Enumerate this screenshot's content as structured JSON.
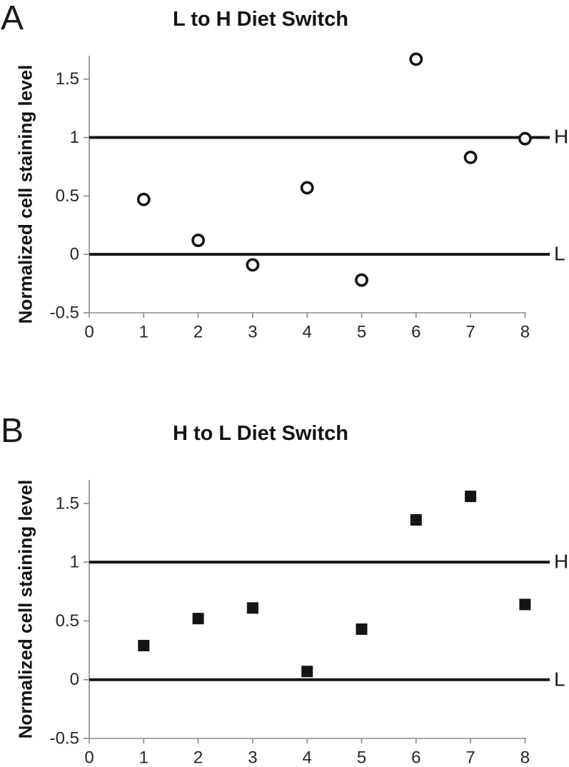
{
  "colors": {
    "background": "#ffffff",
    "marker": "#141414",
    "marker_fill_open": "#ffffff",
    "ref_line": "#141414",
    "axis": "#8a8a8a",
    "tick_label": "#262626",
    "text": "#141414"
  },
  "chart_data": [
    {
      "type": "scatter",
      "panel_label": "A",
      "title": "L to H Diet Switch",
      "xlabel": "",
      "ylabel": "Normalized cell staining level",
      "marker": "open-circle",
      "x": [
        1,
        2,
        3,
        4,
        5,
        6,
        7,
        8
      ],
      "y": [
        0.47,
        0.12,
        -0.09,
        0.57,
        -0.22,
        1.67,
        0.83,
        0.99
      ],
      "xticks": [
        0,
        1,
        2,
        3,
        4,
        5,
        6,
        7,
        8
      ],
      "yticks": [
        -0.5,
        0,
        0.5,
        1,
        1.5
      ],
      "ytick_labels": [
        "-0.5",
        "0",
        "0.5",
        "1",
        "1.5"
      ],
      "xlim": [
        0,
        8
      ],
      "ylim": [
        -0.5,
        1.7
      ],
      "grid": false,
      "legend": "none",
      "ref_lines": [
        {
          "label": "H",
          "value": 1
        },
        {
          "label": "L",
          "value": 0
        }
      ]
    },
    {
      "type": "scatter",
      "panel_label": "B",
      "title": "H to L Diet Switch",
      "xlabel": "",
      "ylabel": "Normalized cell staining level",
      "marker": "filled-square",
      "x": [
        1,
        2,
        3,
        4,
        5,
        6,
        7,
        8
      ],
      "y": [
        0.29,
        0.52,
        0.61,
        0.07,
        0.43,
        1.36,
        1.56,
        0.64
      ],
      "xticks": [
        0,
        1,
        2,
        3,
        4,
        5,
        6,
        7,
        8
      ],
      "yticks": [
        -0.5,
        0,
        0.5,
        1,
        1.5
      ],
      "ytick_labels": [
        "-0.5",
        "0",
        "0.5",
        "1",
        "1.5"
      ],
      "xlim": [
        0,
        8
      ],
      "ylim": [
        -0.5,
        1.7
      ],
      "grid": false,
      "legend": "none",
      "ref_lines": [
        {
          "label": "H",
          "value": 1
        },
        {
          "label": "L",
          "value": 0
        }
      ]
    }
  ]
}
